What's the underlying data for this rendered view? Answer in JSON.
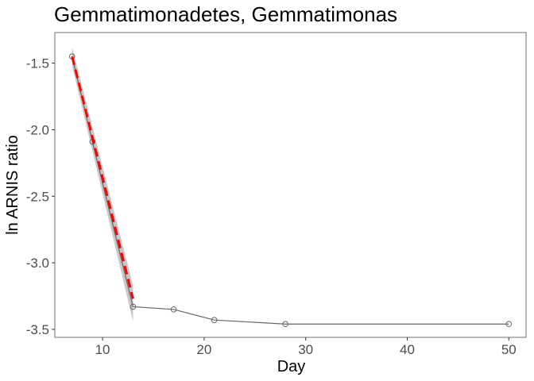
{
  "chart_data": {
    "type": "line",
    "title": "Gemmatimonadetes, Gemmatimonas",
    "xlabel": "Day",
    "ylabel": "ln ARNIS ratio",
    "xlim": [
      5.3,
      51.7
    ],
    "ylim": [
      -3.56,
      -1.27
    ],
    "x_ticks": [
      10,
      20,
      30,
      40,
      50
    ],
    "x_tick_labels": [
      "10",
      "20",
      "30",
      "40",
      "50"
    ],
    "y_ticks": [
      -1.5,
      -2.0,
      -2.5,
      -3.0,
      -3.5
    ],
    "y_tick_labels": [
      "-1.5",
      "-2.0",
      "-2.5",
      "-3.0",
      "-3.5"
    ],
    "grid": false,
    "series": [
      {
        "role": "observed",
        "x": [
          7,
          9,
          13,
          17,
          21,
          28,
          50
        ],
        "y": [
          -1.45,
          -2.09,
          -3.33,
          -3.35,
          -3.43,
          -3.46,
          -3.46
        ],
        "color": "#666666"
      }
    ],
    "fit": {
      "x": [
        7,
        13
      ],
      "y": [
        -1.45,
        -3.27
      ],
      "ci_upper": [
        -1.38,
        -3.17
      ],
      "ci_lower": [
        -1.52,
        -3.44
      ],
      "color": "#ff0000",
      "band_color": "#bdbdbd"
    }
  }
}
